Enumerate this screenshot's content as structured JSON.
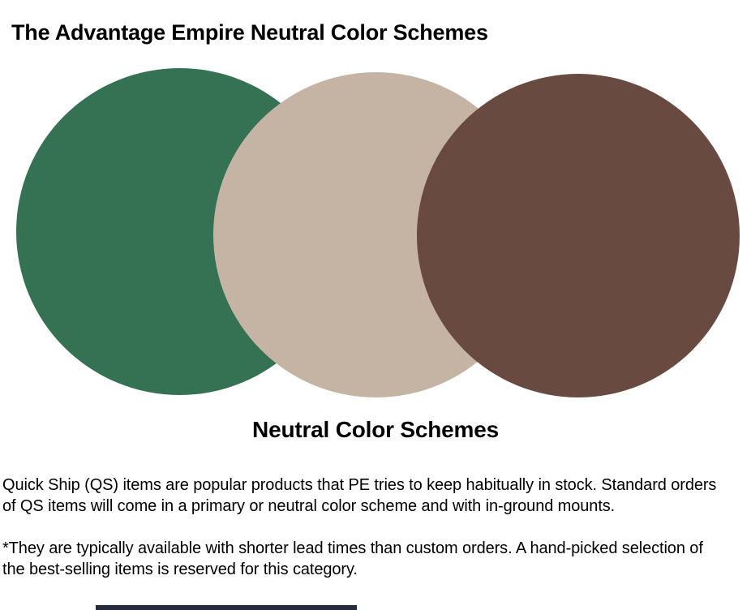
{
  "header": {
    "title_prefix": "The Advantage Empire ",
    "title_emphasis": "Neutral Color Schemes"
  },
  "figure": {
    "caption": "Neutral Color Schemes",
    "circles": [
      {
        "name": "green-circle",
        "color": "#357153"
      },
      {
        "name": "tan-circle",
        "color": "#c5b4a3"
      },
      {
        "name": "brown-circle",
        "color": "#694a40"
      }
    ]
  },
  "body": {
    "paragraph_1": "Quick Ship (QS) items are popular products that PE tries to keep habitually in stock. Standard orders of QS items will come in a primary or neutral color scheme and with in-ground mounts.",
    "paragraph_2": "*They are typically available with shorter lead times than custom orders. A hand-picked selection of the best-selling items is reserved for this category."
  },
  "footer": {
    "partial_bar_color": "#272b3e"
  }
}
